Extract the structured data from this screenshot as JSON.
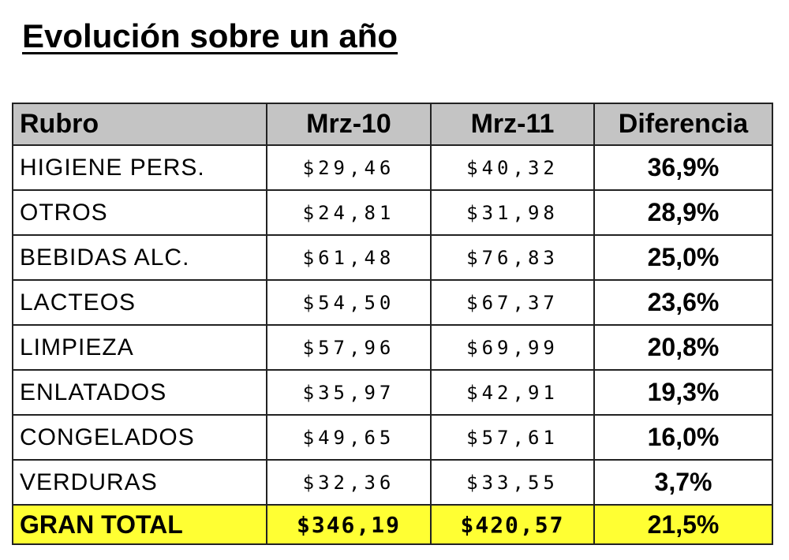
{
  "title": "Evolución sobre un año",
  "table": {
    "header": [
      "Rubro",
      "Mrz-10",
      "Mrz-11",
      "Diferencia"
    ],
    "rows": [
      [
        "HIGIENE PERS.",
        "$29,46",
        "$40,32",
        "36,9%"
      ],
      [
        "OTROS",
        "$24,81",
        "$31,98",
        "28,9%"
      ],
      [
        "BEBIDAS ALC.",
        "$61,48",
        "$76,83",
        "25,0%"
      ],
      [
        "LACTEOS",
        "$54,50",
        "$67,37",
        "23,6%"
      ],
      [
        "LIMPIEZA",
        "$57,96",
        "$69,99",
        "20,8%"
      ],
      [
        "ENLATADOS",
        "$35,97",
        "$42,91",
        "19,3%"
      ],
      [
        "CONGELADOS",
        "$49,65",
        "$57,61",
        "16,0%"
      ],
      [
        "VERDURAS",
        "$32,36",
        "$33,55",
        "3,7%"
      ]
    ],
    "total": [
      "GRAN TOTAL",
      "$346,19",
      "$420,57",
      "21,5%"
    ]
  }
}
